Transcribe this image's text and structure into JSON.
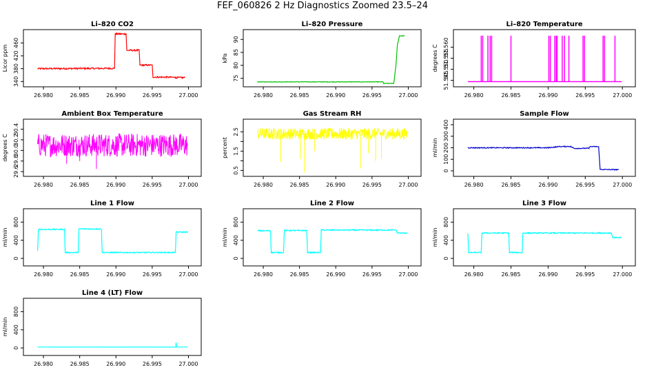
{
  "title": "FEF_060826  2 Hz Diagnostics Zoomed 23.5–24",
  "chart_data": [
    {
      "type": "line",
      "title": "Li–820 CO2",
      "ylabel": "Licor ppm",
      "color": "#ff0000",
      "xlim": [
        26.978,
        27.001
      ],
      "ylim": [
        330,
        495
      ],
      "xticks": [
        "26.980",
        "26.985",
        "26.990",
        "26.995",
        "27.000"
      ],
      "yticks": [
        "340",
        "380",
        "420",
        "460"
      ],
      "points": [
        [
          26.9792,
          380
        ],
        [
          26.9898,
          381
        ],
        [
          26.9899,
          488
        ],
        [
          26.9914,
          488
        ],
        [
          26.9915,
          437
        ],
        [
          26.9932,
          437
        ],
        [
          26.9933,
          391
        ],
        [
          26.995,
          391
        ],
        [
          26.9951,
          354
        ],
        [
          26.9982,
          353
        ],
        [
          26.9983,
          352
        ],
        [
          26.9995,
          352
        ]
      ],
      "noise": 2.5
    },
    {
      "type": "line",
      "title": "Li–820 Pressure",
      "ylabel": "kPa",
      "color": "#00c000",
      "xlim": [
        26.978,
        27.001
      ],
      "ylim": [
        72.5,
        93
      ],
      "xticks": [
        "26.980",
        "26.985",
        "26.990",
        "26.995",
        "27.000"
      ],
      "yticks": [
        "75",
        "80",
        "85",
        "90"
      ],
      "points": [
        [
          26.9792,
          73.6
        ],
        [
          26.9965,
          73.6
        ],
        [
          26.9966,
          73.0
        ],
        [
          26.998,
          73.0
        ],
        [
          26.9983,
          80
        ],
        [
          26.9985,
          88
        ],
        [
          26.9988,
          91.4
        ],
        [
          26.9995,
          91.4
        ]
      ],
      "noise": 0.1
    },
    {
      "type": "spikes",
      "title": "Li–820 Temperature",
      "ylabel": "degrees C",
      "color": "#ff00ff",
      "xlim": [
        26.978,
        27.001
      ],
      "ylim": [
        51.543,
        51.567
      ],
      "xticks": [
        "26.980",
        "26.985",
        "26.990",
        "26.995",
        "27.000"
      ],
      "yticks": [
        "51.545",
        "51.550",
        "51.555",
        "51.560"
      ],
      "base": 51.5444,
      "peak": 51.5652,
      "spike_x": [
        26.981,
        26.9812,
        26.9819,
        26.9822,
        26.9824,
        26.985,
        26.9901,
        26.9903,
        26.9909,
        26.9911,
        26.9912,
        26.9919,
        26.9922,
        26.9928,
        26.9947,
        26.9949,
        26.9974,
        26.9976,
        26.999
      ]
    },
    {
      "type": "noise",
      "title": "Ambient Box Temperature",
      "ylabel": "degrees C",
      "color": "#ff00ff",
      "xlim": [
        26.978,
        27.001
      ],
      "ylim": [
        29.55,
        30.55
      ],
      "xticks": [
        "26.980",
        "26.985",
        "26.990",
        "26.995",
        "27.000"
      ],
      "yticks": [
        "29.6",
        "29.8",
        "30.0",
        "30.2",
        "30.4"
      ],
      "center": 30.1,
      "amp": 0.22,
      "outliers": [
        [
          26.9873,
          29.65
        ],
        [
          26.9832,
          29.75
        ],
        [
          26.985,
          29.8
        ]
      ]
    },
    {
      "type": "noise",
      "title": "Gas Stream RH",
      "ylabel": "percent",
      "color": "#ffff00",
      "xlim": [
        26.978,
        27.001
      ],
      "ylim": [
        0.3,
        3.05
      ],
      "xticks": [
        "26.980",
        "26.985",
        "26.990",
        "26.995",
        "27.000"
      ],
      "yticks": [
        "0.5",
        "1.5",
        "2.5"
      ],
      "yticks_minor": [
        "1.0",
        "2.0"
      ],
      "center": 2.4,
      "amp": 0.3,
      "outliers": [
        [
          26.9824,
          0.95
        ],
        [
          26.9857,
          0.4
        ],
        [
          26.9851,
          1.1
        ],
        [
          26.9871,
          1.5
        ],
        [
          26.9934,
          0.6
        ],
        [
          26.9955,
          1.0
        ],
        [
          26.9963,
          1.1
        ],
        [
          26.9945,
          1.4
        ]
      ]
    },
    {
      "type": "line",
      "title": "Sample Flow",
      "ylabel": "ml/min",
      "color": "#0000cc",
      "xlim": [
        26.978,
        27.001
      ],
      "ylim": [
        -30,
        430
      ],
      "xticks": [
        "26.980",
        "26.985",
        "26.990",
        "26.995",
        "27.000"
      ],
      "yticks": [
        "0",
        "100",
        "200",
        "300",
        "400"
      ],
      "points": [
        [
          26.9792,
          200
        ],
        [
          26.99,
          200
        ],
        [
          26.9915,
          210
        ],
        [
          26.993,
          212
        ],
        [
          26.9935,
          195
        ],
        [
          26.9955,
          195
        ],
        [
          26.9956,
          210
        ],
        [
          26.9968,
          210
        ],
        [
          26.997,
          12
        ],
        [
          26.9995,
          10
        ]
      ],
      "noise": 4
    },
    {
      "type": "line",
      "title": "Line 1 Flow",
      "ylabel": "ml/min",
      "color": "#00ffff",
      "xlim": [
        26.978,
        27.001
      ],
      "ylim": [
        -120,
        1050
      ],
      "xticks": [
        "26.980",
        "26.985",
        "26.990",
        "26.995",
        "27.000"
      ],
      "yticks": [
        "0",
        "400",
        "800"
      ],
      "points": [
        [
          26.9792,
          160
        ],
        [
          26.9793,
          640
        ],
        [
          26.9829,
          640
        ],
        [
          26.983,
          130
        ],
        [
          26.9848,
          130
        ],
        [
          26.9849,
          650
        ],
        [
          26.988,
          650
        ],
        [
          26.9881,
          130
        ],
        [
          26.9982,
          130
        ],
        [
          26.9983,
          580
        ],
        [
          26.9999,
          580
        ]
      ],
      "noise": 12
    },
    {
      "type": "line",
      "title": "Line 2 Flow",
      "ylabel": "ml/min",
      "color": "#00ffff",
      "xlim": [
        26.978,
        27.001
      ],
      "ylim": [
        -120,
        1050
      ],
      "xticks": [
        "26.980",
        "26.985",
        "26.990",
        "26.995",
        "27.000"
      ],
      "yticks": [
        "0",
        "400",
        "800"
      ],
      "points": [
        [
          26.9792,
          610
        ],
        [
          26.981,
          610
        ],
        [
          26.9811,
          130
        ],
        [
          26.9828,
          130
        ],
        [
          26.9829,
          615
        ],
        [
          26.986,
          615
        ],
        [
          26.9861,
          130
        ],
        [
          26.9879,
          130
        ],
        [
          26.988,
          625
        ],
        [
          26.9983,
          625
        ],
        [
          26.9985,
          560
        ],
        [
          26.9999,
          560
        ]
      ],
      "noise": 12
    },
    {
      "type": "line",
      "title": "Line 3 Flow",
      "ylabel": "ml/min",
      "color": "#00ffff",
      "xlim": [
        26.978,
        27.001
      ],
      "ylim": [
        -120,
        1050
      ],
      "xticks": [
        "26.980",
        "26.985",
        "26.990",
        "26.995",
        "27.000"
      ],
      "yticks": [
        "0",
        "400",
        "800"
      ],
      "points": [
        [
          26.9792,
          560
        ],
        [
          26.9793,
          130
        ],
        [
          26.981,
          130
        ],
        [
          26.9811,
          560
        ],
        [
          26.9847,
          560
        ],
        [
          26.9848,
          130
        ],
        [
          26.9865,
          130
        ],
        [
          26.9866,
          560
        ],
        [
          26.9985,
          560
        ],
        [
          26.9987,
          460
        ],
        [
          26.9999,
          460
        ]
      ],
      "noise": 12
    },
    {
      "type": "line",
      "title": "Line 4 (LT) Flow",
      "ylabel": "ml/min",
      "color": "#00ffff",
      "xlim": [
        26.978,
        27.001
      ],
      "ylim": [
        -120,
        1050
      ],
      "xticks": [
        "26.980",
        "26.985",
        "26.990",
        "26.995",
        "27.000"
      ],
      "yticks": [
        "0",
        "400",
        "800"
      ],
      "points": [
        [
          26.9792,
          20
        ],
        [
          26.99825,
          20
        ],
        [
          26.9983,
          120
        ],
        [
          26.99835,
          20
        ],
        [
          26.9999,
          20
        ]
      ],
      "noise": 2
    }
  ]
}
